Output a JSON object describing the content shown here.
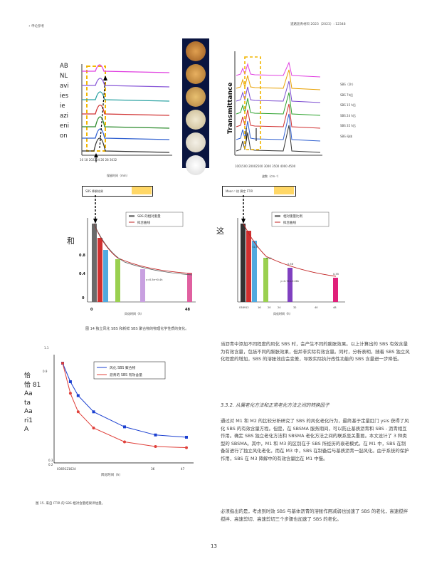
{
  "header": {
    "left": "• 申论参考",
    "right": "道路沥青材料 2023（2023）: 12348"
  },
  "fig14": {
    "vlabel": [
      "AB",
      "NL",
      "avi",
      "ies",
      "ie",
      "azi",
      "eni",
      "on"
    ],
    "left_xticks": "16  18 202224 26 28 3032",
    "left_xlabel": "保留时间（min）",
    "right_ylabel": "Transmittance",
    "right_xticks": "1001500 20002500 3000 3500 4000 4500",
    "right_xlabel": "波数（cm⁻¹）",
    "right_legend": [
      "SBS（1h）",
      "SBS 7h后",
      "SBS 15 h后",
      "SBS 24 h后",
      "SBS 35 h后",
      "SBS 母体"
    ],
    "box_left": "SBS 降解结果",
    "box_right": "Mean ¹ 校 算定 FTIR",
    "bar_left": {
      "side_char": "和",
      "legend": [
        "SBS 的相对重量",
        "拟合曲线"
      ],
      "y_labels": [
        "0.8",
        "0.4",
        "0"
      ],
      "x_labels": [
        "0",
        "48"
      ],
      "xlabel": "风化时间（h）",
      "annotation": "y=0.5e+0.4h"
    },
    "bar_right": {
      "side_char": "这",
      "legend": [
        "相对重量比例",
        "拟合曲线"
      ],
      "x_labels": [
        "038912",
        "16",
        "20",
        "24",
        "32",
        "40",
        "48"
      ],
      "xlabel": "风化时间（h）",
      "value_labels": [
        "72.5",
        "0.91",
        "0.56",
        "0.35"
      ],
      "annotation": "y=0.71e-0.06h"
    },
    "caption": "图 14 独立风化 SBS 和新鲜 SBS 聚合物的物理化学性质的变化。"
  },
  "fig15": {
    "top_labels": [
      "1.1",
      "0.9"
    ],
    "side_labels": [
      "恰",
      "恰 81",
      "Aa",
      "ta",
      "Aa",
      "ri1",
      "A"
    ],
    "legend": [
      "风化 SBS 聚合物",
      "沥青的 SBS 有效含量"
    ],
    "x_ticks": "0369121624",
    "xlabel": "风化时间（h）",
    "y_low": [
      "0.3",
      "0.2"
    ],
    "x_right": [
      "36",
      "47"
    ],
    "caption": "图 15. 来自 FTIR 的 SBS 相对含量结果评估量。"
  },
  "chart_data": {
    "type": "scatter",
    "title": "",
    "xlabel": "风化时间（h）",
    "ylabel": "",
    "series": [
      {
        "name": "风化 SBS 聚合物",
        "color": "#1a3fd0",
        "x": [
          0,
          3,
          6,
          12,
          24,
          36,
          48
        ],
        "y": [
          1.0,
          0.84,
          0.72,
          0.58,
          0.45,
          0.38,
          0.36
        ]
      },
      {
        "name": "沥青的 SBS 有效含量",
        "color": "#e0403a",
        "x": [
          0,
          3,
          6,
          12,
          24,
          36,
          48
        ],
        "y": [
          1.0,
          0.74,
          0.58,
          0.44,
          0.32,
          0.28,
          0.27
        ]
      }
    ]
  },
  "para1": "当沥青中添加不同程度的风化 SBS 时，会产生不同的膨胀效果。以上计算出的 SBS 有效含量为有效含量，包括不同的膨胀效果，但并非实际有效含量。同时，分析表明，随着 SBS 独立风化程度的增加，SBS 的溶胀效应会变差，导致实际执行改性功能的 SBS 含量进一步降低。",
  "section_title": "3.3.2. 从属老化方法和正常老化方法之间的转换因子",
  "para2": "通过对 M1 和 M2 的比较分析研究了 SBS 的风化老化行为，最终基于定量肛门 ysis 获得了风化 SBS 的有效含量方程。但是，在 SBSMA 服务期间，可以防止基质沥青和 SBS - 沥青相互作用。确定 SBS 独立老化方法和 SBSMA 老化方法之间的联系至关重要。本文设计了 3 种类型的 SBSMA。其中，M1 和 M3 的区别在于 SBS 所经历的衰老模式。在 M1 中，SBS 在制备前进行了独立风化老化，而在 M3 中，SBS 在制备后与基质沥青一起风化。由于系统的保护作用，SBS 在 M3 降解中的有效含量比在 M1 中慢。",
  "para3": "必须指出的是，考虑到时效 SBS 与基体沥青的溶胀作用减弱也加速了 SBS 的老化，高速搅拌搅拌、高速剪切、高速剪切三个步骤也加速了 SBS 的老化。",
  "page_number": "13"
}
